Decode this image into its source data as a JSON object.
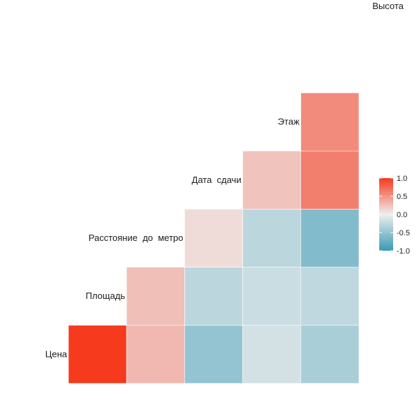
{
  "chart_data": {
    "type": "heatmap",
    "title": "",
    "variables": [
      "Цена",
      "Площадь",
      "Расстояние  до  метро",
      "Дата  сдачи",
      "Этаж",
      "Высота"
    ],
    "cells": [
      {
        "row": "Цена",
        "col": "Цена",
        "value": 1.0
      },
      {
        "row": "Цена",
        "col": "Площадь",
        "value": 0.3
      },
      {
        "row": "Цена",
        "col": "Расстояние  до  метро",
        "value": -0.5
      },
      {
        "row": "Цена",
        "col": "Дата  сдачи",
        "value": -0.15
      },
      {
        "row": "Цена",
        "col": "Этаж",
        "value": -0.38
      },
      {
        "row": "Площадь",
        "col": "Площадь",
        "value": 0.26
      },
      {
        "row": "Площадь",
        "col": "Расстояние  до  метро",
        "value": -0.28
      },
      {
        "row": "Площадь",
        "col": "Дата  сдачи",
        "value": -0.2
      },
      {
        "row": "Площадь",
        "col": "Этаж",
        "value": -0.26
      },
      {
        "row": "Расстояние  до  метро",
        "col": "Расстояние  до  метро",
        "value": 0.1
      },
      {
        "row": "Расстояние  до  метро",
        "col": "Дата  сдачи",
        "value": -0.28
      },
      {
        "row": "Расстояние  до  метро",
        "col": "Этаж",
        "value": -0.6
      },
      {
        "row": "Дата  сдачи",
        "col": "Дата  сдачи",
        "value": 0.24
      },
      {
        "row": "Дата  сдачи",
        "col": "Этаж",
        "value": 0.62
      },
      {
        "row": "Этаж",
        "col": "Этаж",
        "value": 0.55
      }
    ],
    "legend": {
      "position": "right",
      "ticks": [
        "1.0",
        "0.5",
        "0.0",
        "-0.5",
        "-1.0"
      ],
      "tick_values": [
        1.0,
        0.5,
        0.0,
        -0.5,
        -1.0
      ],
      "range": [
        -1,
        1
      ],
      "colors": {
        "low": "#3a9ab5",
        "mid": "#eeeeee",
        "high": "#f53a1e"
      }
    },
    "grid": false
  }
}
